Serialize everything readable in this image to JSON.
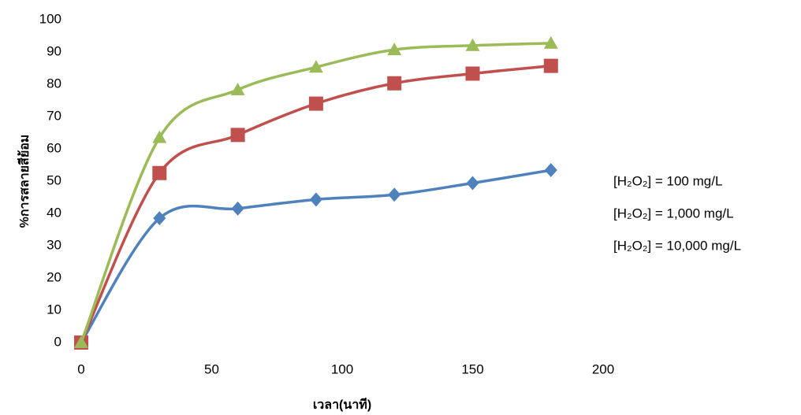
{
  "chart_data": {
    "type": "line",
    "x_label": "เวลา(นาที)",
    "y_label": "%การสลายสีย้อม",
    "x": [
      0,
      30,
      60,
      90,
      120,
      150,
      180
    ],
    "series": [
      {
        "name": "[H₂O₂] = 100 mg/L",
        "color": "#4f81bd",
        "marker": "diamond",
        "values": [
          0,
          38.5,
          41.5,
          44.3,
          45.8,
          49.4,
          53.4
        ]
      },
      {
        "name": "[H₂O₂] = 1,000 mg/L",
        "color": "#c0504d",
        "marker": "square",
        "values": [
          0,
          52.5,
          64.3,
          74,
          80.3,
          83.3,
          85.7
        ]
      },
      {
        "name": "[H₂O₂] = 10,000 mg/L",
        "color": "#9bbb59",
        "marker": "triangle",
        "values": [
          0,
          63.5,
          78.3,
          85.3,
          90.7,
          92,
          92.7
        ]
      }
    ],
    "xlim": [
      0,
      200
    ],
    "xticks": [
      0,
      50,
      100,
      150,
      200
    ],
    "ylim": [
      0,
      100
    ],
    "yticks": [
      0,
      10,
      20,
      30,
      40,
      50,
      60,
      70,
      80,
      90,
      100
    ],
    "smooth": true,
    "legend": "right"
  }
}
